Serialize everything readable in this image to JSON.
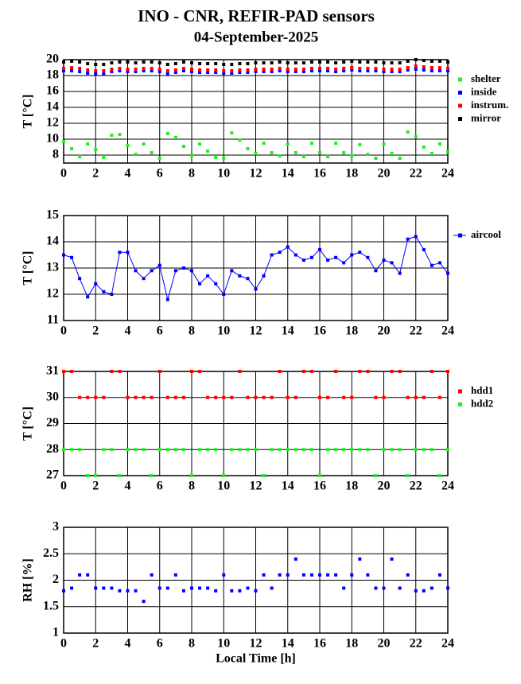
{
  "chart_data": [
    {
      "type": "scatter",
      "title": "INO - CNR, REFIR-PAD sensors",
      "subtitle": "04-September-2025",
      "ylabel": "T [°C]",
      "x": [
        0,
        0.5,
        1,
        1.5,
        2,
        2.5,
        3,
        3.5,
        4,
        4.5,
        5,
        5.5,
        6,
        6.5,
        7,
        7.5,
        8,
        8.5,
        9,
        9.5,
        10,
        10.5,
        11,
        11.5,
        12,
        12.5,
        13,
        13.5,
        14,
        14.5,
        15,
        15.5,
        16,
        16.5,
        17,
        17.5,
        18,
        18.5,
        19,
        19.5,
        20,
        20.5,
        21,
        21.5,
        22,
        22.5,
        23,
        23.5,
        24
      ],
      "xlim": [
        0,
        24
      ],
      "xticks": [
        0,
        2,
        4,
        6,
        8,
        10,
        12,
        14,
        16,
        18,
        20,
        22,
        24
      ],
      "ylim": [
        7,
        20
      ],
      "yticks": [
        8,
        10,
        12,
        14,
        16,
        18,
        20
      ],
      "grid": true,
      "lines": false,
      "series": [
        {
          "name": "shelter",
          "color": "#22ee22",
          "values": [
            9.7,
            8.8,
            7.8,
            9.4,
            8.7,
            7.7,
            10.5,
            10.6,
            9.2,
            8.1,
            9.4,
            8.3,
            7.6,
            10.7,
            10.2,
            9.1,
            8.0,
            9.4,
            8.5,
            7.7,
            7.6,
            10.8,
            9.9,
            8.8,
            8.2,
            9.5,
            8.3,
            7.9,
            9.4,
            8.3,
            7.8,
            9.5,
            8.3,
            7.8,
            9.5,
            8.3,
            7.9,
            9.3,
            8.1,
            7.6,
            9.4,
            8.2,
            7.6,
            10.9,
            10.3,
            9.0,
            8.2,
            9.4,
            8.4
          ]
        },
        {
          "name": "inside",
          "color": "#0000ff",
          "values": [
            18.6,
            18.6,
            18.5,
            18.3,
            18.2,
            18.2,
            18.5,
            18.6,
            18.5,
            18.5,
            18.6,
            18.6,
            18.5,
            18.2,
            18.4,
            18.6,
            18.5,
            18.4,
            18.4,
            18.4,
            18.3,
            18.3,
            18.4,
            18.4,
            18.5,
            18.5,
            18.5,
            18.6,
            18.5,
            18.5,
            18.5,
            18.6,
            18.6,
            18.6,
            18.5,
            18.6,
            18.7,
            18.6,
            18.6,
            18.6,
            18.5,
            18.5,
            18.5,
            18.7,
            18.8,
            18.7,
            18.6,
            18.6,
            18.6
          ]
        },
        {
          "name": "instrum.",
          "color": "#ff0000",
          "values": [
            18.9,
            19.0,
            18.9,
            18.7,
            18.6,
            18.6,
            18.8,
            18.9,
            18.8,
            18.8,
            18.9,
            18.9,
            18.8,
            18.6,
            18.7,
            18.9,
            18.8,
            18.7,
            18.7,
            18.7,
            18.6,
            18.6,
            18.7,
            18.7,
            18.8,
            18.8,
            18.8,
            18.9,
            18.8,
            18.8,
            18.8,
            18.9,
            18.9,
            18.9,
            18.8,
            18.9,
            19.0,
            18.9,
            18.9,
            18.9,
            18.8,
            18.8,
            18.8,
            19.0,
            19.2,
            19.1,
            19.0,
            19.0,
            18.9
          ]
        },
        {
          "name": "mirror",
          "color": "#000000",
          "values": [
            19.7,
            19.8,
            19.7,
            19.5,
            19.4,
            19.4,
            19.6,
            19.7,
            19.7,
            19.6,
            19.7,
            19.7,
            19.6,
            19.4,
            19.5,
            19.7,
            19.6,
            19.5,
            19.5,
            19.5,
            19.4,
            19.4,
            19.5,
            19.5,
            19.6,
            19.6,
            19.6,
            19.7,
            19.6,
            19.6,
            19.6,
            19.7,
            19.7,
            19.7,
            19.6,
            19.7,
            19.8,
            19.7,
            19.7,
            19.7,
            19.6,
            19.6,
            19.6,
            19.8,
            20.0,
            19.9,
            19.8,
            19.8,
            19.7
          ]
        }
      ]
    },
    {
      "type": "scatter",
      "ylabel": "T [°C]",
      "x": [
        0,
        0.5,
        1,
        1.5,
        2,
        2.5,
        3,
        3.5,
        4,
        4.5,
        5,
        5.5,
        6,
        6.5,
        7,
        7.5,
        8,
        8.5,
        9,
        9.5,
        10,
        10.5,
        11,
        11.5,
        12,
        12.5,
        13,
        13.5,
        14,
        14.5,
        15,
        15.5,
        16,
        16.5,
        17,
        17.5,
        18,
        18.5,
        19,
        19.5,
        20,
        20.5,
        21,
        21.5,
        22,
        22.5,
        23,
        23.5,
        24
      ],
      "xlim": [
        0,
        24
      ],
      "xticks": [
        0,
        2,
        4,
        6,
        8,
        10,
        12,
        14,
        16,
        18,
        20,
        22,
        24
      ],
      "ylim": [
        11,
        15
      ],
      "yticks": [
        11,
        12,
        13,
        14,
        15
      ],
      "grid": true,
      "lines": true,
      "series": [
        {
          "name": "aircool",
          "color": "#0000ff",
          "values": [
            13.5,
            13.4,
            12.6,
            11.9,
            12.4,
            12.1,
            12.0,
            13.6,
            13.6,
            12.9,
            12.6,
            12.9,
            13.1,
            11.8,
            12.9,
            13.0,
            12.9,
            12.4,
            12.7,
            12.4,
            12.0,
            12.9,
            12.7,
            12.6,
            12.2,
            12.7,
            13.5,
            13.6,
            13.8,
            13.5,
            13.3,
            13.4,
            13.7,
            13.3,
            13.4,
            13.2,
            13.5,
            13.6,
            13.4,
            12.9,
            13.3,
            13.2,
            12.8,
            14.1,
            14.2,
            13.7,
            13.1,
            13.2,
            12.8
          ]
        }
      ]
    },
    {
      "type": "scatter",
      "ylabel": "T [°C]",
      "x": [
        0,
        0.5,
        1,
        1.5,
        2,
        2.5,
        3,
        3.5,
        4,
        4.5,
        5,
        5.5,
        6,
        6.5,
        7,
        7.5,
        8,
        8.5,
        9,
        9.5,
        10,
        10.5,
        11,
        11.5,
        12,
        12.5,
        13,
        13.5,
        14,
        14.5,
        15,
        15.5,
        16,
        16.5,
        17,
        17.5,
        18,
        18.5,
        19,
        19.5,
        20,
        20.5,
        21,
        21.5,
        22,
        22.5,
        23,
        23.5,
        24
      ],
      "xlim": [
        0,
        24
      ],
      "xticks": [
        0,
        2,
        4,
        6,
        8,
        10,
        12,
        14,
        16,
        18,
        20,
        22,
        24
      ],
      "ylim": [
        27,
        31
      ],
      "yticks": [
        27,
        28,
        29,
        30,
        31
      ],
      "grid": true,
      "lines": false,
      "series": [
        {
          "name": "hdd1",
          "color": "#ff0000",
          "values": [
            31,
            31,
            30,
            30,
            30,
            30,
            31,
            31,
            30,
            30,
            30,
            30,
            31,
            30,
            30,
            30,
            31,
            31,
            30,
            30,
            30,
            30,
            31,
            30,
            30,
            30,
            30,
            31,
            30,
            30,
            31,
            31,
            30,
            30,
            31,
            30,
            30,
            31,
            31,
            30,
            30,
            31,
            31,
            30,
            30,
            30,
            31,
            30,
            31
          ]
        },
        {
          "name": "hdd2",
          "color": "#22ee22",
          "values": [
            28,
            28,
            28,
            27,
            27,
            28,
            28,
            27,
            28,
            28,
            28,
            27,
            28,
            28,
            28,
            28,
            27,
            28,
            28,
            28,
            27,
            28,
            28,
            28,
            28,
            27,
            28,
            28,
            28,
            28,
            28,
            28,
            27,
            28,
            28,
            28,
            28,
            28,
            28,
            27,
            28,
            28,
            28,
            27,
            28,
            28,
            28,
            27,
            28
          ]
        }
      ]
    },
    {
      "type": "scatter",
      "ylabel": "RH [%]",
      "xlabel": "Local Time [h]",
      "x": [
        0,
        0.5,
        1,
        1.5,
        2,
        2.5,
        3,
        3.5,
        4,
        4.5,
        5,
        5.5,
        6,
        6.5,
        7,
        7.5,
        8,
        8.5,
        9,
        9.5,
        10,
        10.5,
        11,
        11.5,
        12,
        12.5,
        13,
        13.5,
        14,
        14.5,
        15,
        15.5,
        16,
        16.5,
        17,
        17.5,
        18,
        18.5,
        19,
        19.5,
        20,
        20.5,
        21,
        21.5,
        22,
        22.5,
        23,
        23.5,
        24
      ],
      "xlim": [
        0,
        24
      ],
      "xticks": [
        0,
        2,
        4,
        6,
        8,
        10,
        12,
        14,
        16,
        18,
        20,
        22,
        24
      ],
      "ylim": [
        1,
        3
      ],
      "yticks": [
        1,
        1.5,
        2,
        2.5,
        3
      ],
      "grid": true,
      "lines": false,
      "series": [
        {
          "color": "#0000ff",
          "values": [
            1.8,
            1.85,
            2.1,
            2.1,
            1.85,
            1.85,
            1.85,
            1.8,
            1.8,
            1.8,
            1.6,
            2.1,
            1.85,
            1.85,
            2.1,
            1.8,
            1.85,
            1.85,
            1.85,
            1.8,
            2.1,
            1.8,
            1.8,
            1.85,
            1.8,
            2.1,
            1.85,
            2.1,
            2.1,
            2.4,
            2.1,
            2.1,
            2.1,
            2.1,
            2.1,
            1.85,
            2.1,
            2.4,
            2.1,
            1.85,
            1.85,
            2.4,
            1.85,
            2.1,
            1.8,
            1.8,
            1.85,
            2.1,
            1.85
          ]
        }
      ]
    }
  ]
}
